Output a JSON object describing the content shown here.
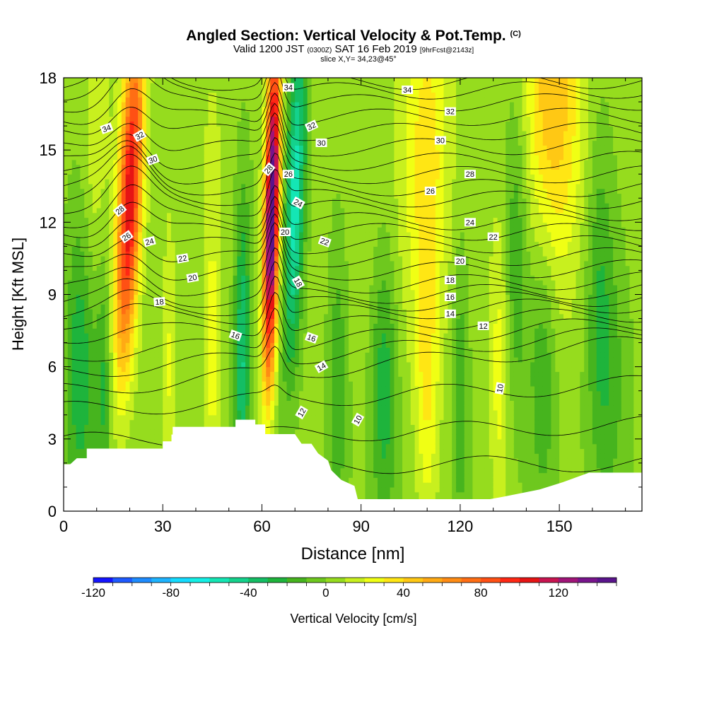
{
  "title": {
    "main": "Angled Section: Vertical Velocity & Pot.Temp.",
    "main_suffix": "(C)",
    "valid_prefix": "Valid 1200 JST",
    "valid_utc": "(0300Z)",
    "valid_date": "SAT 16 Feb 2019",
    "forecast": "[9hrFcst@2143z]",
    "slice": "slice X,Y= 34,23@45°"
  },
  "chart_data": {
    "type": "heatmap",
    "xlabel": "Distance [nm]",
    "ylabel": "Height [Kft MSL]",
    "xlim": [
      0,
      175
    ],
    "ylim": [
      0,
      18
    ],
    "x_ticks": [
      "0",
      "30",
      "60",
      "90",
      "120",
      "150"
    ],
    "y_ticks": [
      "0",
      "3",
      "6",
      "9",
      "12",
      "15",
      "18"
    ],
    "colorbar": {
      "label": "Vertical Velocity [cm/s]",
      "range": [
        -120,
        150
      ],
      "step": 10,
      "tick_labels": [
        "-120",
        "-80",
        "-40",
        "0",
        "40",
        "80",
        "120"
      ],
      "colors": [
        "#1414ff",
        "#1e5aff",
        "#1e8cff",
        "#1eb4ff",
        "#14dcff",
        "#14f0e6",
        "#14e6b4",
        "#14d28c",
        "#14be64",
        "#1eb43c",
        "#46b41e",
        "#6ec81e",
        "#96dc1e",
        "#c8f01e",
        "#f0ff14",
        "#ffe614",
        "#ffc814",
        "#ffaa14",
        "#ff8c14",
        "#ff6e14",
        "#ff5014",
        "#ff2814",
        "#e61414",
        "#c81450",
        "#a01478",
        "#78148c",
        "#5a148c"
      ]
    },
    "vertical_velocity_features": [
      {
        "x": 20,
        "center_height": 13,
        "half_width": 3.5,
        "value": 105,
        "tilt": 0.3
      },
      {
        "x": 63,
        "center_height": 12.5,
        "half_width": 2.2,
        "value": 150,
        "tilt": 0.15
      },
      {
        "x": 70,
        "center_height": 13,
        "half_width": 3.0,
        "value": -60,
        "tilt": 0.22
      },
      {
        "x": 5,
        "center_height": 5,
        "half_width": 4.5,
        "value": -35,
        "tilt": 0
      },
      {
        "x": 12,
        "center_height": 4,
        "half_width": 2.5,
        "value": -28,
        "tilt": 0
      },
      {
        "x": 32,
        "center_height": 5,
        "half_width": 2.0,
        "value": 18,
        "tilt": 0
      },
      {
        "x": 45,
        "center_height": 4.5,
        "half_width": 2.0,
        "value": 20,
        "tilt": 0
      },
      {
        "x": 54,
        "center_height": 6,
        "half_width": 2.5,
        "value": -45,
        "tilt": 0.05
      },
      {
        "x": 83,
        "center_height": 4,
        "half_width": 3.0,
        "value": -25,
        "tilt": 0
      },
      {
        "x": 97,
        "center_height": 4,
        "half_width": 4.0,
        "value": -35,
        "tilt": 0
      },
      {
        "x": 110,
        "center_height": 3.5,
        "half_width": 3.5,
        "value": 30,
        "tilt": 0
      },
      {
        "x": 120,
        "center_height": 3.5,
        "half_width": 2.5,
        "value": -25,
        "tilt": 0
      },
      {
        "x": 132,
        "center_height": 5,
        "half_width": 3.0,
        "value": 25,
        "tilt": 0
      },
      {
        "x": 145,
        "center_height": 5,
        "half_width": 4.0,
        "value": -25,
        "tilt": 0
      },
      {
        "x": 165,
        "center_height": 4,
        "half_width": 6.0,
        "value": -20,
        "tilt": 0
      },
      {
        "x": 98,
        "center_height": 12,
        "half_width": 10.0,
        "value": 5,
        "tilt": 0
      },
      {
        "x": 110,
        "center_height": 15,
        "half_width": 7.0,
        "value": 30,
        "tilt": 0
      },
      {
        "x": 148,
        "center_height": 17,
        "half_width": 9.0,
        "value": 45,
        "tilt": 0
      },
      {
        "x": 137,
        "center_height": 11,
        "half_width": 4.0,
        "value": -25,
        "tilt": 0
      },
      {
        "x": 162,
        "center_height": 10,
        "half_width": 4.0,
        "value": -18,
        "tilt": 0
      },
      {
        "x": 10,
        "center_height": 15,
        "half_width": 4.0,
        "value": 15,
        "tilt": 0
      },
      {
        "x": 45,
        "center_height": 13,
        "half_width": 4.0,
        "value": 8,
        "tilt": 0
      }
    ],
    "potential_temperature_contours": {
      "levels": [
        9,
        10,
        11,
        12,
        13,
        14,
        15,
        16,
        17,
        18,
        19,
        20,
        21,
        22,
        23,
        24,
        25,
        26,
        27,
        28,
        29,
        30,
        31,
        32,
        33,
        34,
        35
      ],
      "left_heights": [
        1.8,
        2.9,
        4.2,
        5.0,
        5.8,
        6.5,
        7.3,
        7.9,
        8.3,
        8.7,
        9.2,
        9.8,
        10.4,
        11.0,
        11.6,
        12.1,
        12.7,
        13.1,
        13.5,
        13.9,
        14.4,
        15.0,
        15.7,
        16.3,
        16.9,
        17.4,
        17.8
      ],
      "right_heights": [
        2.0,
        3.6,
        5.3,
        7.0,
        7.4,
        7.8,
        8.2,
        8.6,
        8.9,
        9.2,
        9.6,
        10.1,
        10.6,
        11.1,
        11.6,
        12.0,
        12.4,
        12.9,
        13.4,
        14.0,
        14.6,
        15.2,
        15.8,
        16.4,
        17.0,
        17.5,
        17.9
      ]
    },
    "contour_labels": [
      {
        "text": "34",
        "x": 13,
        "y": 15.9,
        "angle": -20
      },
      {
        "text": "32",
        "x": 23,
        "y": 15.6,
        "angle": -30
      },
      {
        "text": "30",
        "x": 27,
        "y": 14.6,
        "angle": -20
      },
      {
        "text": "28",
        "x": 17,
        "y": 12.5,
        "angle": -40
      },
      {
        "text": "26",
        "x": 19,
        "y": 11.4,
        "angle": -35
      },
      {
        "text": "24",
        "x": 26,
        "y": 11.2,
        "angle": -15
      },
      {
        "text": "22",
        "x": 36,
        "y": 10.5,
        "angle": -10
      },
      {
        "text": "20",
        "x": 39,
        "y": 9.7,
        "angle": -10
      },
      {
        "text": "18",
        "x": 29,
        "y": 8.7,
        "angle": -5
      },
      {
        "text": "16",
        "x": 52,
        "y": 7.3,
        "angle": 20
      },
      {
        "text": "34",
        "x": 68,
        "y": 17.6,
        "angle": 0
      },
      {
        "text": "32",
        "x": 75,
        "y": 16.0,
        "angle": -25
      },
      {
        "text": "30",
        "x": 78,
        "y": 15.3,
        "angle": 0
      },
      {
        "text": "28",
        "x": 62,
        "y": 14.2,
        "angle": -50
      },
      {
        "text": "26",
        "x": 68,
        "y": 14.0,
        "angle": 0
      },
      {
        "text": "24",
        "x": 71,
        "y": 12.8,
        "angle": 30
      },
      {
        "text": "22",
        "x": 79,
        "y": 11.2,
        "angle": 20
      },
      {
        "text": "20",
        "x": 67,
        "y": 11.6,
        "angle": 0
      },
      {
        "text": "18",
        "x": 71,
        "y": 9.5,
        "angle": 60
      },
      {
        "text": "16",
        "x": 75,
        "y": 7.2,
        "angle": 20
      },
      {
        "text": "14",
        "x": 78,
        "y": 6.0,
        "angle": -30
      },
      {
        "text": "12",
        "x": 72,
        "y": 4.1,
        "angle": -60
      },
      {
        "text": "10",
        "x": 89,
        "y": 3.8,
        "angle": -60
      },
      {
        "text": "34",
        "x": 104,
        "y": 17.5,
        "angle": 0
      },
      {
        "text": "32",
        "x": 117,
        "y": 16.6,
        "angle": 0
      },
      {
        "text": "30",
        "x": 114,
        "y": 15.4,
        "angle": 0
      },
      {
        "text": "28",
        "x": 123,
        "y": 14.0,
        "angle": 0
      },
      {
        "text": "26",
        "x": 111,
        "y": 13.3,
        "angle": 0
      },
      {
        "text": "24",
        "x": 123,
        "y": 12.0,
        "angle": 0
      },
      {
        "text": "22",
        "x": 130,
        "y": 11.4,
        "angle": 0
      },
      {
        "text": "20",
        "x": 120,
        "y": 10.4,
        "angle": 0
      },
      {
        "text": "18",
        "x": 117,
        "y": 9.6,
        "angle": 0
      },
      {
        "text": "16",
        "x": 117,
        "y": 8.9,
        "angle": 0
      },
      {
        "text": "14",
        "x": 117,
        "y": 8.2,
        "angle": 0
      },
      {
        "text": "12",
        "x": 127,
        "y": 7.7,
        "angle": 0
      },
      {
        "text": "10",
        "x": 132,
        "y": 5.1,
        "angle": -80
      }
    ],
    "terrain": [
      [
        0,
        1.95
      ],
      [
        2,
        1.95
      ],
      [
        4,
        2.2
      ],
      [
        7,
        2.2
      ],
      [
        7,
        2.6
      ],
      [
        20,
        2.6
      ],
      [
        30,
        2.6
      ],
      [
        30,
        2.9
      ],
      [
        33,
        2.9
      ],
      [
        33,
        3.5
      ],
      [
        45,
        3.5
      ],
      [
        52,
        3.5
      ],
      [
        52,
        3.8
      ],
      [
        58,
        3.8
      ],
      [
        58,
        3.6
      ],
      [
        61,
        3.6
      ],
      [
        61,
        3.2
      ],
      [
        70,
        3.2
      ],
      [
        72,
        2.8
      ],
      [
        75,
        2.8
      ],
      [
        77,
        2.4
      ],
      [
        80,
        2.1
      ],
      [
        81,
        1.7
      ],
      [
        84,
        1.3
      ],
      [
        88,
        1.05
      ],
      [
        89,
        0.5
      ],
      [
        100,
        0.5
      ],
      [
        110,
        0.5
      ],
      [
        120,
        0.5
      ],
      [
        129,
        0.5
      ],
      [
        133,
        0.6
      ],
      [
        144,
        0.9
      ],
      [
        151,
        1.2
      ],
      [
        159,
        1.6
      ],
      [
        175,
        1.6
      ]
    ]
  }
}
